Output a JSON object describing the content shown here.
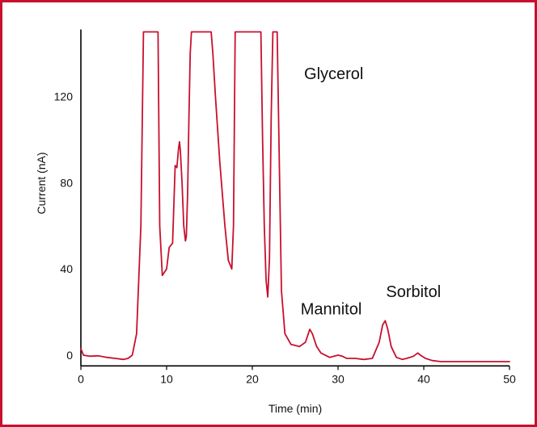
{
  "chart_data": {
    "type": "line",
    "title": "",
    "xlabel": "Time (min)",
    "ylabel": "Current (nA)",
    "xlim": [
      0,
      50
    ],
    "ylim": [
      -5,
      150
    ],
    "xticks": [
      0,
      10,
      20,
      30,
      40,
      50
    ],
    "yticks": [
      0,
      40,
      80,
      120
    ],
    "grid": false,
    "colors": {
      "line": "#c8102e",
      "frame": "#c8102e",
      "axis": "#000000"
    },
    "series": [
      {
        "x": [
          0,
          0.3,
          1,
          2,
          3,
          4,
          5,
          5.5,
          6,
          6.5,
          7,
          7.3,
          7.6,
          9.0,
          9.2,
          9.5,
          10,
          10.3,
          10.7,
          11,
          11.2,
          11.4,
          11.5,
          11.6,
          11.8,
          12,
          12.2,
          12.3,
          12.45,
          12.6,
          12.75,
          12.9,
          15.2,
          15.4,
          15.7,
          16.2,
          16.8,
          17.2,
          17.6,
          17.8,
          18.0,
          21.0,
          21.2,
          21.4,
          21.6,
          21.8,
          22.0,
          22.2,
          22.4,
          22.9,
          23.1,
          23.4,
          23.8,
          24.5,
          25.5,
          26.2,
          26.7,
          27.0,
          27.5,
          28.0,
          29,
          30,
          30.5,
          31,
          32,
          33,
          34,
          34.8,
          35.2,
          35.5,
          35.8,
          36.2,
          36.8,
          37.5,
          38,
          38.8,
          39.3,
          39.6,
          40.2,
          41,
          42,
          45,
          48,
          50
        ],
        "y": [
          3,
          0,
          -0.5,
          -0.3,
          -1,
          -1.5,
          -2,
          -1.5,
          0,
          10,
          60,
          150,
          150,
          150,
          60,
          37,
          40,
          50,
          52,
          88,
          87,
          96,
          99,
          95,
          80,
          60,
          53,
          55,
          75,
          110,
          140,
          150,
          150,
          140,
          120,
          90,
          60,
          44,
          40,
          60,
          150,
          150,
          100,
          60,
          35,
          27,
          45,
          110,
          150,
          150,
          100,
          30,
          10,
          5,
          4,
          6,
          12,
          10,
          4,
          1,
          -1,
          0,
          -0.5,
          -1.5,
          -1.5,
          -2,
          -1.5,
          6,
          14,
          16,
          12,
          4,
          -1,
          -2,
          -1.5,
          -0.5,
          1,
          0,
          -1.5,
          -2.5,
          -3,
          -3,
          -3,
          -3
        ]
      }
    ],
    "annotations": [
      {
        "text": "Glycerol",
        "x": 29.5,
        "y": 128
      },
      {
        "text": "Mannitol",
        "x": 29.2,
        "y": 19
      },
      {
        "text": "Sorbitol",
        "x": 38.8,
        "y": 27
      }
    ]
  }
}
